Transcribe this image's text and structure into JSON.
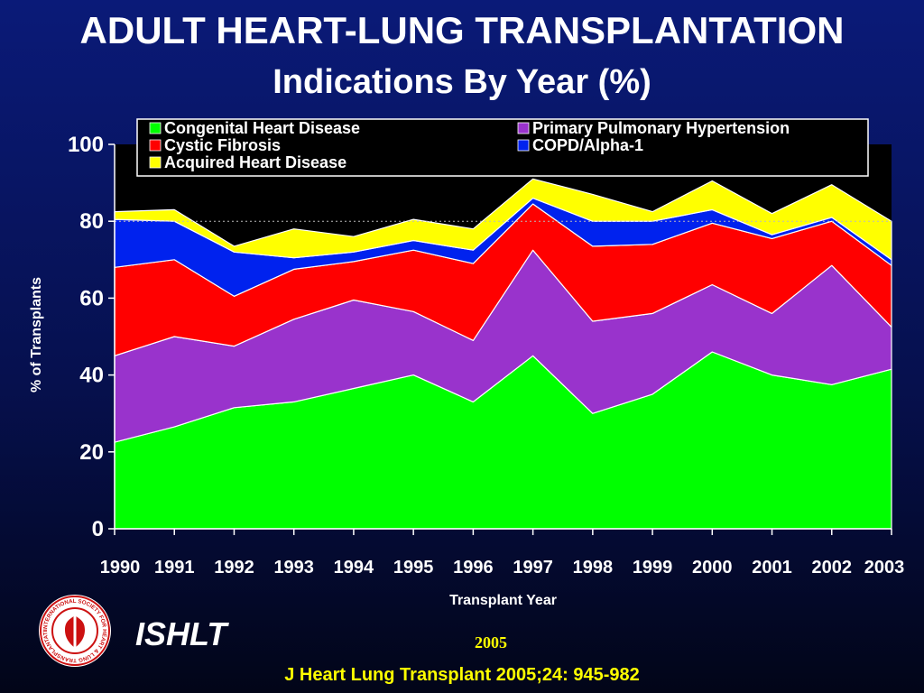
{
  "header": {
    "title": "ADULT HEART-LUNG TRANSPLANTATION",
    "subtitle": "Indications By Year (%)"
  },
  "chart_data": {
    "type": "area",
    "stacked": true,
    "xlabel": "Transplant Year",
    "ylabel": "% of Transplants",
    "ylim": [
      0,
      100
    ],
    "yticks": [
      0,
      20,
      40,
      60,
      80,
      100
    ],
    "x": [
      "1990",
      "1991",
      "1992",
      "1993",
      "1994",
      "1995",
      "1996",
      "1997",
      "1998",
      "1999",
      "2000",
      "2001",
      "2002",
      "2003"
    ],
    "legend_position": "top",
    "grid": false,
    "reference_line": 80,
    "series": [
      {
        "name": "Congenital Heart Disease",
        "color": "#00ff00",
        "values": [
          22.5,
          26.5,
          31.5,
          33,
          36.5,
          40,
          33,
          45,
          30,
          35,
          46,
          40,
          37.5,
          41.5
        ]
      },
      {
        "name": "Primary Pulmonary Hypertension",
        "color": "#9933cc",
        "values": [
          22.5,
          23.5,
          16,
          21.5,
          23,
          16.5,
          16,
          27.5,
          24,
          21,
          17.5,
          16,
          31,
          11
        ]
      },
      {
        "name": "Cystic Fibrosis",
        "color": "#ff0000",
        "values": [
          23,
          20,
          13,
          13,
          10,
          16,
          20,
          12,
          19.5,
          18,
          16,
          19.5,
          11.5,
          16
        ]
      },
      {
        "name": "COPD/Alpha-1",
        "color": "#0022ee",
        "values": [
          12.5,
          10,
          11.5,
          3,
          2.5,
          2.5,
          3.5,
          1.5,
          6.5,
          6,
          3.5,
          1,
          1,
          1.5
        ]
      },
      {
        "name": "Acquired Heart Disease",
        "color": "#ffff00",
        "values": [
          2,
          3,
          1.5,
          7.5,
          4,
          5.5,
          5.5,
          5,
          7,
          2.5,
          7.5,
          5.5,
          8.5,
          10
        ]
      }
    ]
  },
  "footer": {
    "org": "ISHLT",
    "year": "2005",
    "citation": "J Heart Lung Transplant 2005;24: 945-982"
  },
  "logo": {
    "ring_text": "INTERNATIONAL SOCIETY FOR HEART & LUNG TRANSPLANTATION"
  }
}
